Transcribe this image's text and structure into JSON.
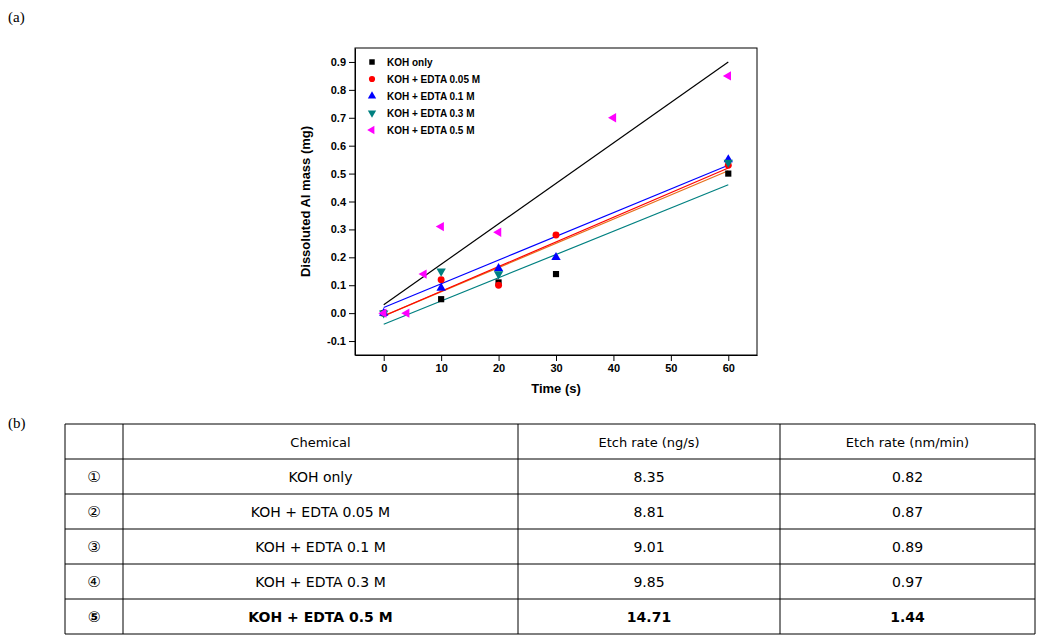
{
  "chart_data": {
    "type": "scatter",
    "x_label": "Time (s)",
    "y_label": "Dissoluted Al mass (mg)",
    "xlim": [
      -5,
      65
    ],
    "xticks": [
      0,
      10,
      20,
      30,
      40,
      50,
      60
    ],
    "ylim": [
      -0.15,
      0.95
    ],
    "yticks": [
      -0.1,
      {
        "value": 0,
        "label": "0.0"
      },
      0.1,
      0.2,
      0.3,
      0.4,
      0.5,
      0.6,
      0.7,
      0.8,
      0.9
    ],
    "legend": "upper left",
    "series": [
      {
        "name": "KOH only",
        "color": "#000000",
        "marker": "square",
        "x": [
          0,
          10,
          20,
          30,
          60
        ],
        "values": [
          0,
          0.05,
          0.11,
          0.14,
          0.5
        ],
        "fit": {
          "x": [
            0,
            60
          ],
          "values": [
            -0.01,
            0.51
          ],
          "color": "#e8701c"
        }
      },
      {
        "name": "KOH + EDTA 0.05 M",
        "color": "#ff0000",
        "marker": "circle",
        "x": [
          0,
          10,
          20,
          30,
          60
        ],
        "values": [
          0,
          0.12,
          0.1,
          0.28,
          0.53
        ],
        "fit": {
          "x": [
            0,
            60
          ],
          "values": [
            -0.01,
            0.52
          ],
          "color": "#ff0000"
        }
      },
      {
        "name": "KOH + EDTA 0.1 M",
        "color": "#0000ff",
        "marker": "triangle-up",
        "x": [
          0,
          10,
          20,
          30,
          60
        ],
        "values": [
          0,
          0.09,
          0.16,
          0.2,
          0.55
        ],
        "fit": {
          "x": [
            0,
            60
          ],
          "values": [
            0.02,
            0.53
          ],
          "color": "#0000ff"
        }
      },
      {
        "name": "KOH + EDTA 0.3 M",
        "color": "#008080",
        "marker": "triangle-down",
        "x": [
          0,
          10,
          20,
          60
        ],
        "values": [
          0,
          0.15,
          0.14,
          0.54
        ],
        "fit": {
          "x": [
            0,
            60
          ],
          "values": [
            -0.04,
            0.46
          ],
          "color": "#008080"
        }
      },
      {
        "name": "KOH + EDTA 0.5 M",
        "color": "#ff00ff",
        "marker": "triangle-left",
        "x": [
          0,
          4,
          7,
          10,
          20,
          40,
          60
        ],
        "values": [
          0,
          0,
          0.14,
          0.31,
          0.29,
          0.7,
          0.85
        ],
        "fit": {
          "x": [
            0,
            60
          ],
          "values": [
            0.03,
            0.9
          ],
          "color": "#000000"
        }
      }
    ]
  },
  "panel_labels": [
    "(a)",
    "(b)"
  ],
  "table": {
    "header": [
      "Chemical",
      "Etch rate (ng/s)",
      "Etch rate (nm/min)"
    ],
    "rows": [
      [
        "①",
        "KOH only",
        "8.35",
        "0.82"
      ],
      [
        "②",
        "KOH + EDTA 0.05 M",
        "8.81",
        "0.87"
      ],
      [
        "③",
        "KOH + EDTA 0.1 M",
        "9.01",
        "0.89"
      ],
      [
        "④",
        "KOH + EDTA 0.3 M",
        "9.85",
        "0.97"
      ],
      [
        "⑤",
        "KOH + EDTA 0.5 M",
        "14.71",
        "1.44"
      ]
    ]
  }
}
